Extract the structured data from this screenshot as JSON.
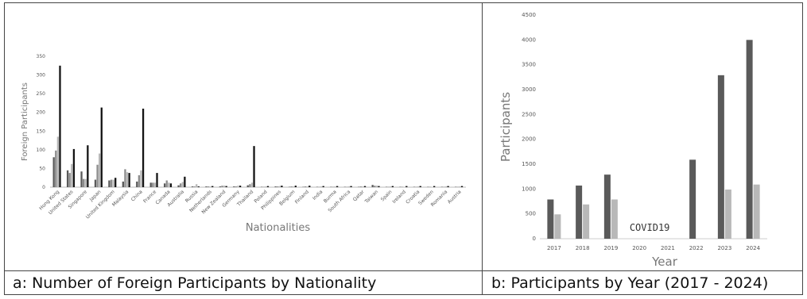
{
  "captions": {
    "a": "a: Number of Foreign Participants by Nationality",
    "b": "b: Participants by Year (2017 - 2024)"
  },
  "colors": {
    "dark": "#5a5a5a",
    "mid": "#8c8c8c",
    "light": "#b8b8b8",
    "black": "#141414"
  },
  "chart_data": [
    {
      "type": "bar",
      "title": "",
      "xlabel": "Nationalities",
      "ylabel": "Foreign Participants",
      "ylim": [
        0,
        350
      ],
      "yticks": [
        0,
        50,
        100,
        150,
        200,
        250,
        300,
        350
      ],
      "grid": false,
      "categories": [
        "Hong Kong",
        "United States",
        "Singapore",
        "Japan",
        "United Kingdom",
        "Malaysia",
        "China",
        "France",
        "Canada",
        "Australia",
        "Russia",
        "Netherlands",
        "New Zealand",
        "Germany",
        "Thailand",
        "Poland",
        "Philippines",
        "Belgium",
        "Finland",
        "India",
        "Burma",
        "South Africa",
        "Qatar",
        "Taiwan",
        "Spain",
        "Ireland",
        "Croatia",
        "Sweden",
        "Romania",
        "Austria"
      ],
      "series": [
        {
          "color": "dark",
          "values": [
            80,
            45,
            42,
            20,
            18,
            15,
            15,
            12,
            10,
            5,
            2,
            2,
            2,
            2,
            5,
            1,
            2,
            1,
            1,
            1,
            1,
            1,
            1,
            6,
            1,
            1,
            1,
            1,
            1,
            1
          ]
        },
        {
          "color": "mid",
          "values": [
            98,
            38,
            22,
            60,
            20,
            48,
            32,
            12,
            18,
            10,
            2,
            2,
            4,
            2,
            8,
            1,
            2,
            2,
            2,
            1,
            1,
            1,
            2,
            4,
            1,
            1,
            1,
            1,
            1,
            1
          ]
        },
        {
          "color": "light",
          "values": [
            135,
            62,
            22,
            90,
            20,
            40,
            45,
            12,
            12,
            14,
            8,
            2,
            4,
            4,
            12,
            2,
            3,
            2,
            2,
            2,
            2,
            2,
            2,
            4,
            2,
            1,
            2,
            1,
            2,
            2
          ]
        },
        {
          "color": "black",
          "values": [
            325,
            102,
            112,
            213,
            25,
            38,
            210,
            38,
            10,
            28,
            2,
            3,
            3,
            4,
            110,
            3,
            4,
            4,
            4,
            3,
            3,
            3,
            3,
            3,
            3,
            3,
            3,
            3,
            3,
            3
          ]
        }
      ]
    },
    {
      "type": "bar",
      "title": "",
      "xlabel": "Year",
      "ylabel": "Participants",
      "ylim": [
        0,
        4500
      ],
      "yticks": [
        0,
        500,
        1000,
        1500,
        2000,
        2500,
        3000,
        3500,
        4000,
        4500
      ],
      "grid": false,
      "categories": [
        "2017",
        "2018",
        "2019",
        "2020",
        "2021",
        "2022",
        "2023",
        "2024"
      ],
      "series": [
        {
          "color": "dark",
          "values": [
            790,
            1070,
            1290,
            null,
            null,
            1590,
            3290,
            4000
          ]
        },
        {
          "color": "light",
          "values": [
            490,
            690,
            790,
            null,
            null,
            null,
            990,
            1090
          ]
        }
      ],
      "annotations": [
        {
          "text": "COVID19",
          "x": "2020",
          "y": 130
        }
      ]
    }
  ]
}
